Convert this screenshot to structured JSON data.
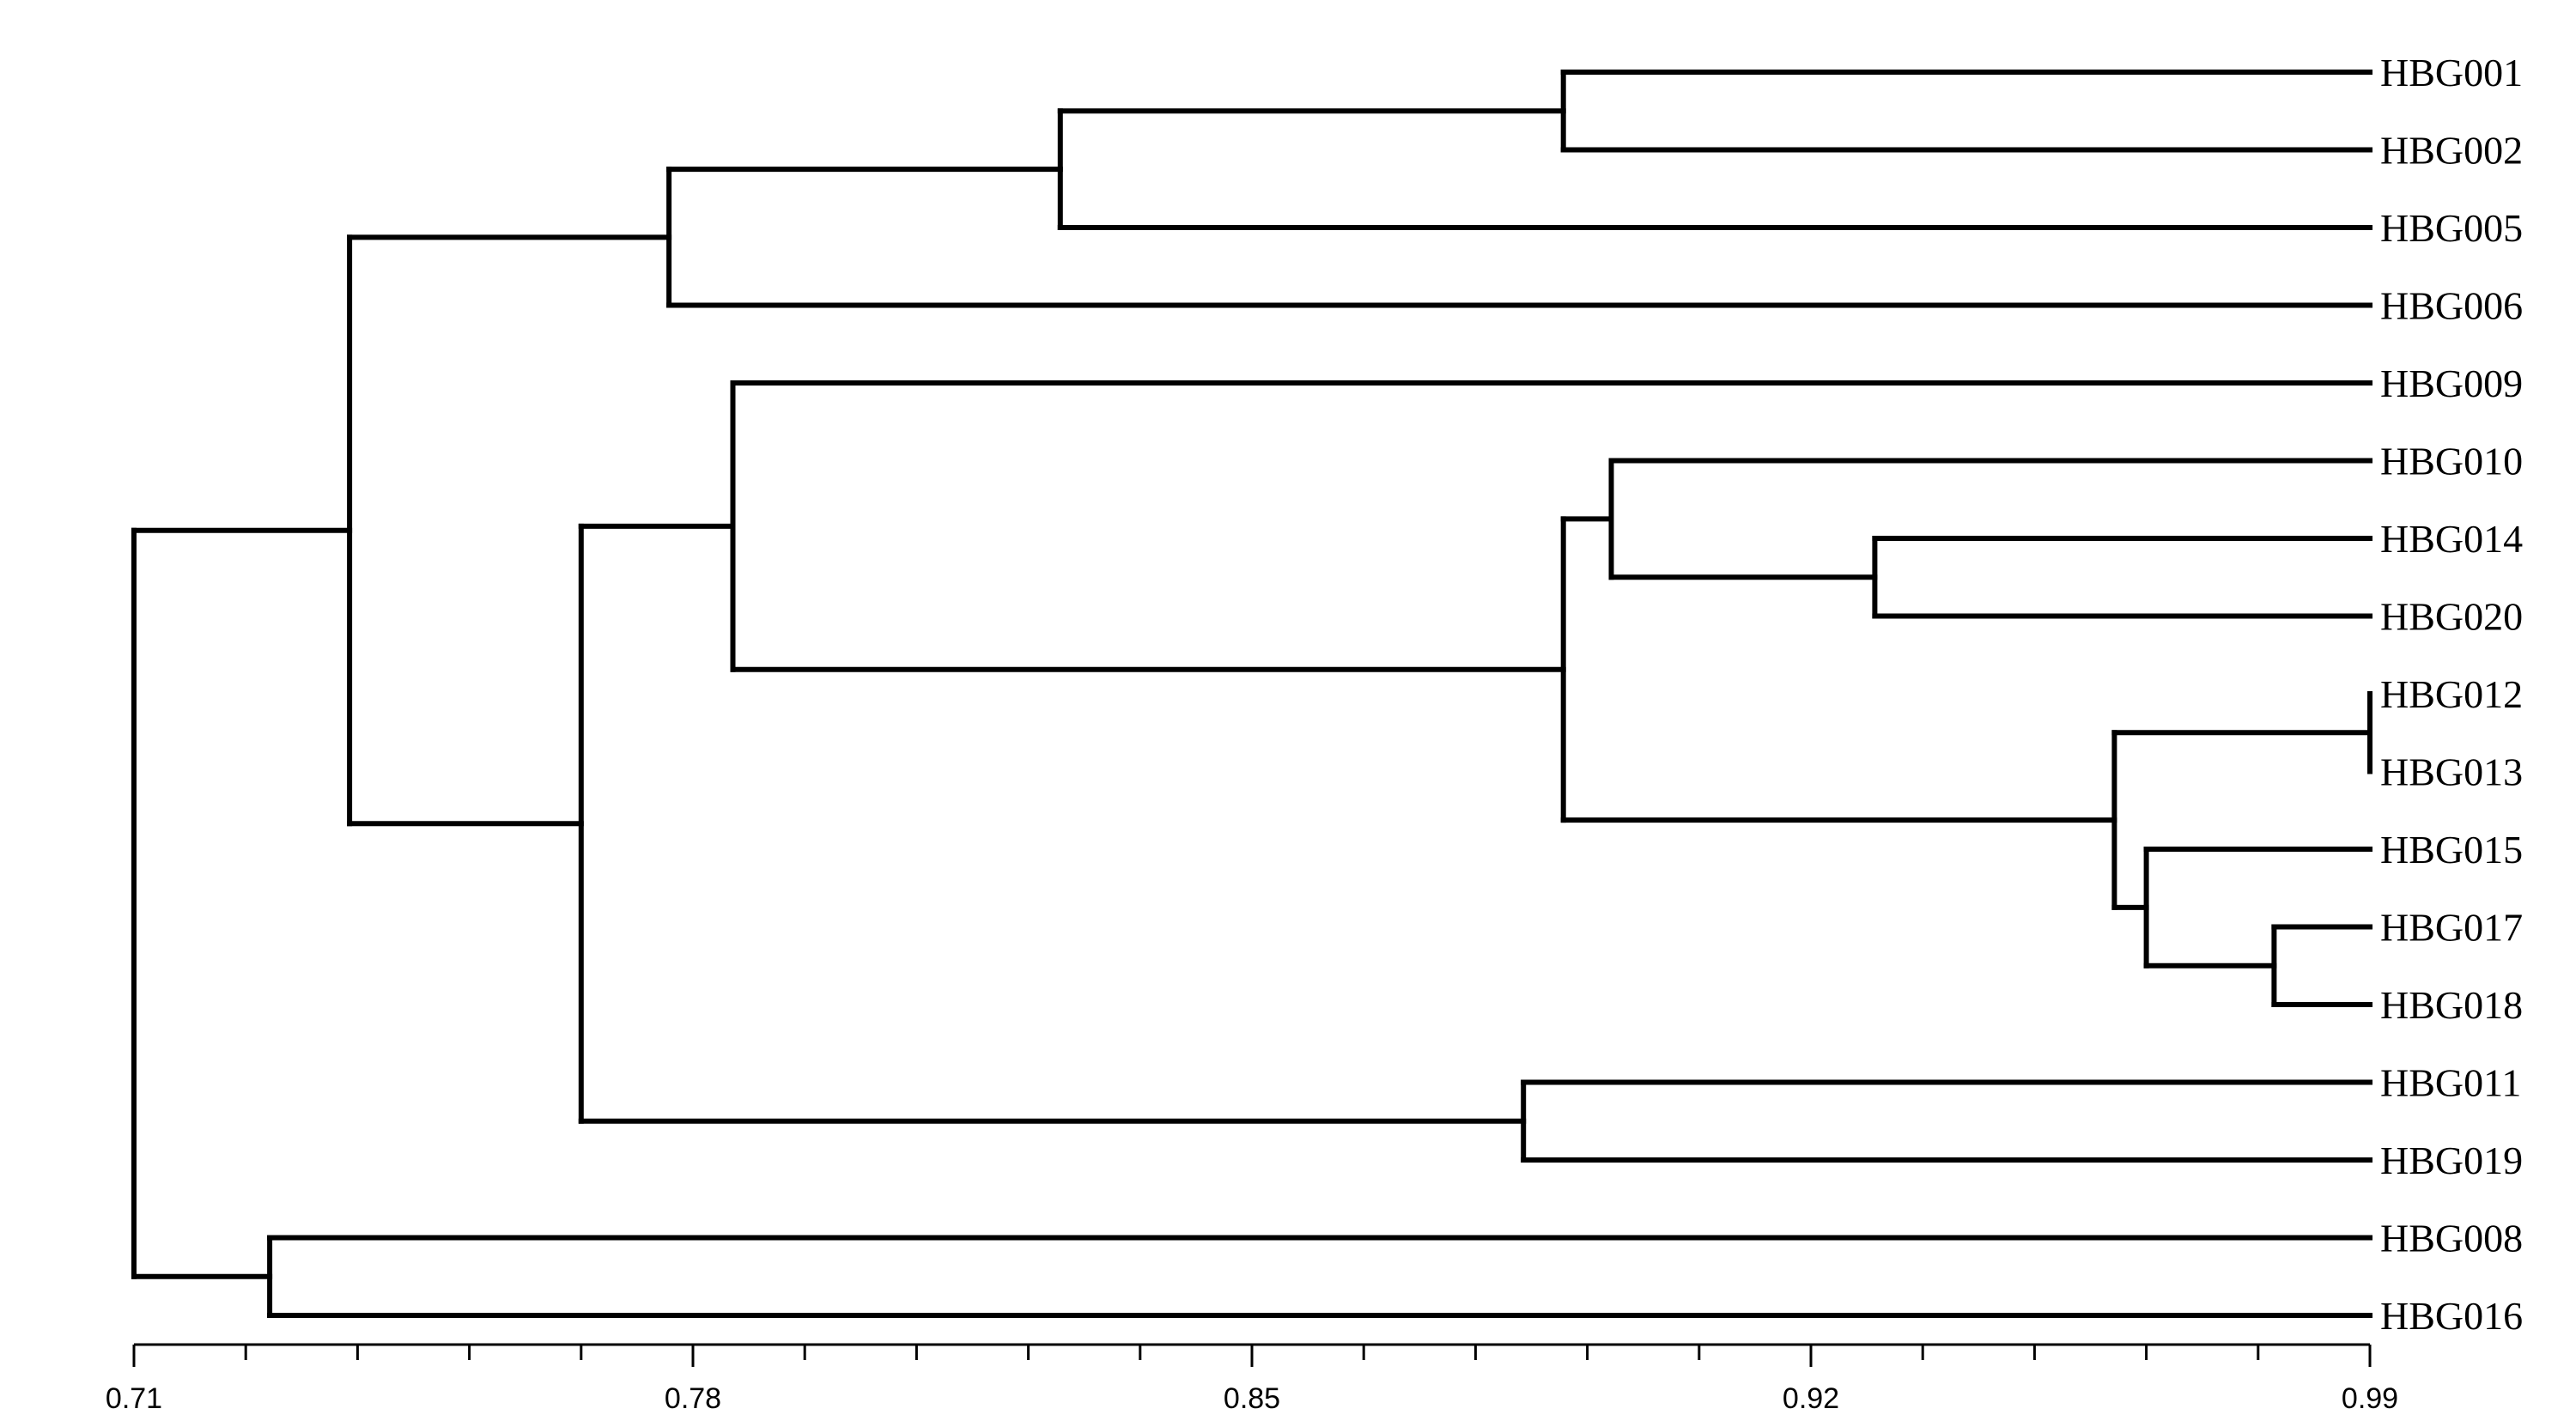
{
  "chart_data": {
    "type": "dendrogram",
    "axis": {
      "min": 0.71,
      "max": 0.99,
      "tick_labels": [
        "0.71",
        "0.78",
        "0.85",
        "0.92",
        "0.99"
      ],
      "tick_values": [
        0.71,
        0.78,
        0.85,
        0.92,
        0.99
      ],
      "minor_tick_step": 0.014
    },
    "leaves": [
      "HBG001",
      "HBG002",
      "HBG005",
      "HBG006",
      "HBG009",
      "HBG010",
      "HBG014",
      "HBG020",
      "HBG012",
      "HBG013",
      "HBG015",
      "HBG017",
      "HBG018",
      "HBG011",
      "HBG019",
      "HBG008",
      "HBG016"
    ],
    "merges": [
      {
        "id": "n1",
        "height": 0.889,
        "children": [
          "HBG001",
          "HBG002"
        ]
      },
      {
        "id": "n2",
        "height": 0.826,
        "children": [
          "n1",
          "HBG005"
        ]
      },
      {
        "id": "n3",
        "height": 0.777,
        "children": [
          "n2",
          "HBG006"
        ]
      },
      {
        "id": "n4",
        "height": 0.928,
        "children": [
          "HBG014",
          "HBG020"
        ]
      },
      {
        "id": "n5",
        "height": 0.895,
        "children": [
          "HBG010",
          "n4"
        ]
      },
      {
        "id": "n6",
        "height": 0.99,
        "children": [
          "HBG012",
          "HBG013"
        ]
      },
      {
        "id": "n7",
        "height": 0.978,
        "children": [
          "HBG017",
          "HBG018"
        ]
      },
      {
        "id": "n8",
        "height": 0.962,
        "children": [
          "HBG015",
          "n7"
        ]
      },
      {
        "id": "n9",
        "height": 0.958,
        "children": [
          "n6",
          "n8"
        ]
      },
      {
        "id": "n10",
        "height": 0.889,
        "children": [
          "n5",
          "n9"
        ]
      },
      {
        "id": "n11",
        "height": 0.785,
        "children": [
          "HBG009",
          "n10"
        ]
      },
      {
        "id": "n12",
        "height": 0.884,
        "children": [
          "HBG011",
          "HBG019"
        ]
      },
      {
        "id": "n13",
        "height": 0.766,
        "children": [
          "n11",
          "n12"
        ]
      },
      {
        "id": "n14",
        "height": 0.737,
        "children": [
          "n3",
          "n13"
        ]
      },
      {
        "id": "n15",
        "height": 0.727,
        "children": [
          "HBG008",
          "HBG016"
        ]
      },
      {
        "id": "n16",
        "height": 0.71,
        "children": [
          "n14",
          "n15"
        ]
      }
    ]
  }
}
